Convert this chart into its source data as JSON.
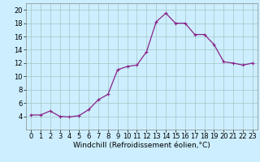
{
  "hours": [
    0,
    1,
    2,
    3,
    4,
    5,
    6,
    7,
    8,
    9,
    10,
    11,
    12,
    13,
    14,
    15,
    16,
    17,
    18,
    19,
    20,
    21,
    22,
    23
  ],
  "values": [
    4.2,
    4.2,
    4.8,
    4.0,
    3.9,
    4.1,
    5.0,
    6.5,
    7.3,
    11.0,
    11.5,
    11.7,
    13.7,
    18.2,
    19.5,
    18.0,
    18.0,
    16.3,
    16.3,
    14.8,
    12.2,
    12.0,
    11.7,
    12.0
  ],
  "line_color": "#882288",
  "marker": "+",
  "marker_size": 3,
  "marker_lw": 0.8,
  "bg_color": "#cceeff",
  "grid_color": "#aacccc",
  "xlabel": "Windchill (Refroidissement éolien,°C)",
  "ylim": [
    2,
    21
  ],
  "yticks": [
    4,
    6,
    8,
    10,
    12,
    14,
    16,
    18,
    20
  ],
  "xlim": [
    -0.5,
    23.5
  ],
  "xticks": [
    0,
    1,
    2,
    3,
    4,
    5,
    6,
    7,
    8,
    9,
    10,
    11,
    12,
    13,
    14,
    15,
    16,
    17,
    18,
    19,
    20,
    21,
    22,
    23
  ],
  "xlabel_fontsize": 6.5,
  "tick_fontsize": 6.0,
  "linewidth": 0.9
}
